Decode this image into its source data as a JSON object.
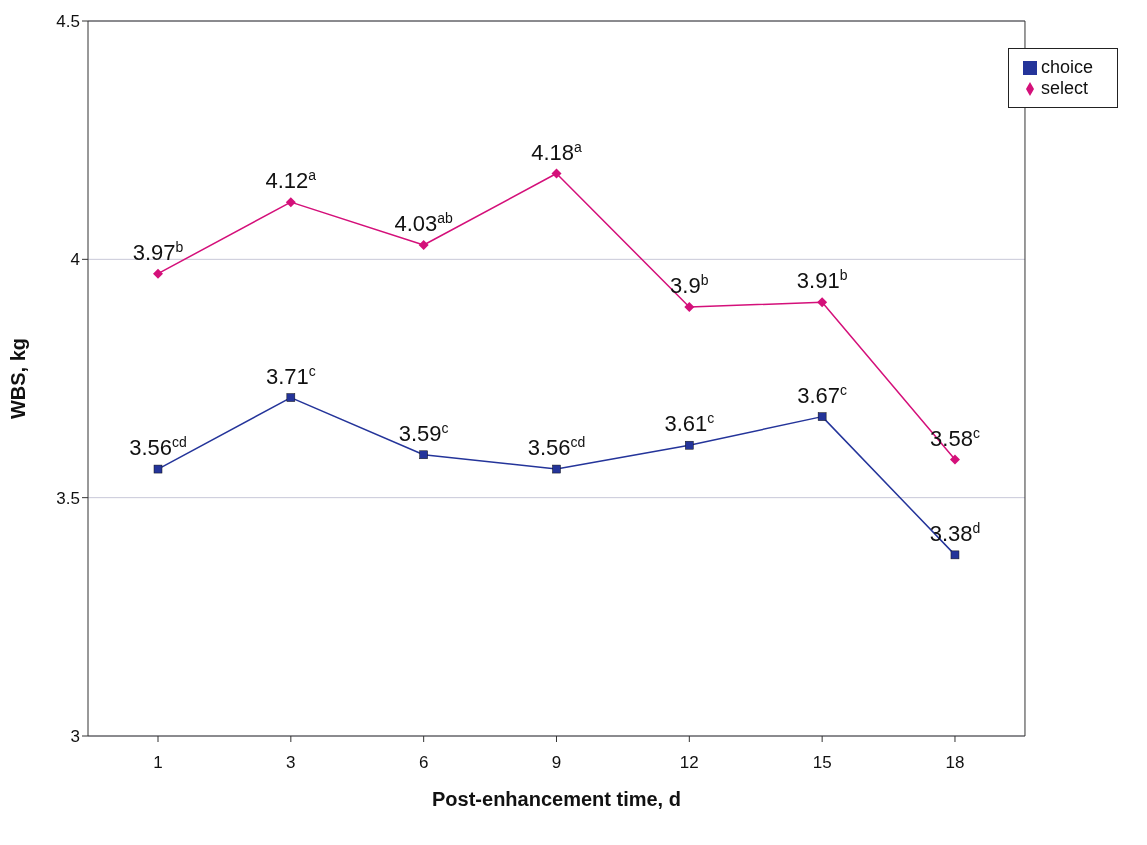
{
  "chart_data": {
    "type": "line",
    "xlabel": "Post-enhancement time, d",
    "ylabel": "WBS, kg",
    "categories": [
      "1",
      "3",
      "6",
      "9",
      "12",
      "15",
      "18"
    ],
    "series": [
      {
        "name": "choice",
        "color": "#24349a",
        "marker": "square",
        "values": [
          3.56,
          3.71,
          3.59,
          3.56,
          3.61,
          3.67,
          3.38
        ],
        "value_labels": [
          "3.56$^{cd}$",
          "3.71$^{c}$",
          "3.59$^{c}$",
          "3.56$^{cd}$",
          "3.61$^{c}$",
          "3.67$^{c}$",
          "3.38$^{d}$"
        ]
      },
      {
        "name": "select",
        "color": "#d4107a",
        "marker": "diamond",
        "values": [
          3.97,
          4.12,
          4.03,
          4.18,
          3.9,
          3.91,
          3.58
        ],
        "value_labels": [
          "3.97$^{b}$",
          "4.12$^{a}$",
          "4.03$^{ab}$",
          "4.18$^{a}$",
          "3.9$^{b}$",
          "3.91$^{b}$",
          "3.58$^{c}$"
        ]
      }
    ],
    "ylim": [
      3,
      4.5
    ],
    "yticks": [
      3,
      3.5,
      4,
      4.5
    ],
    "grid": "y",
    "legend": "top right",
    "line_style": "solid"
  }
}
